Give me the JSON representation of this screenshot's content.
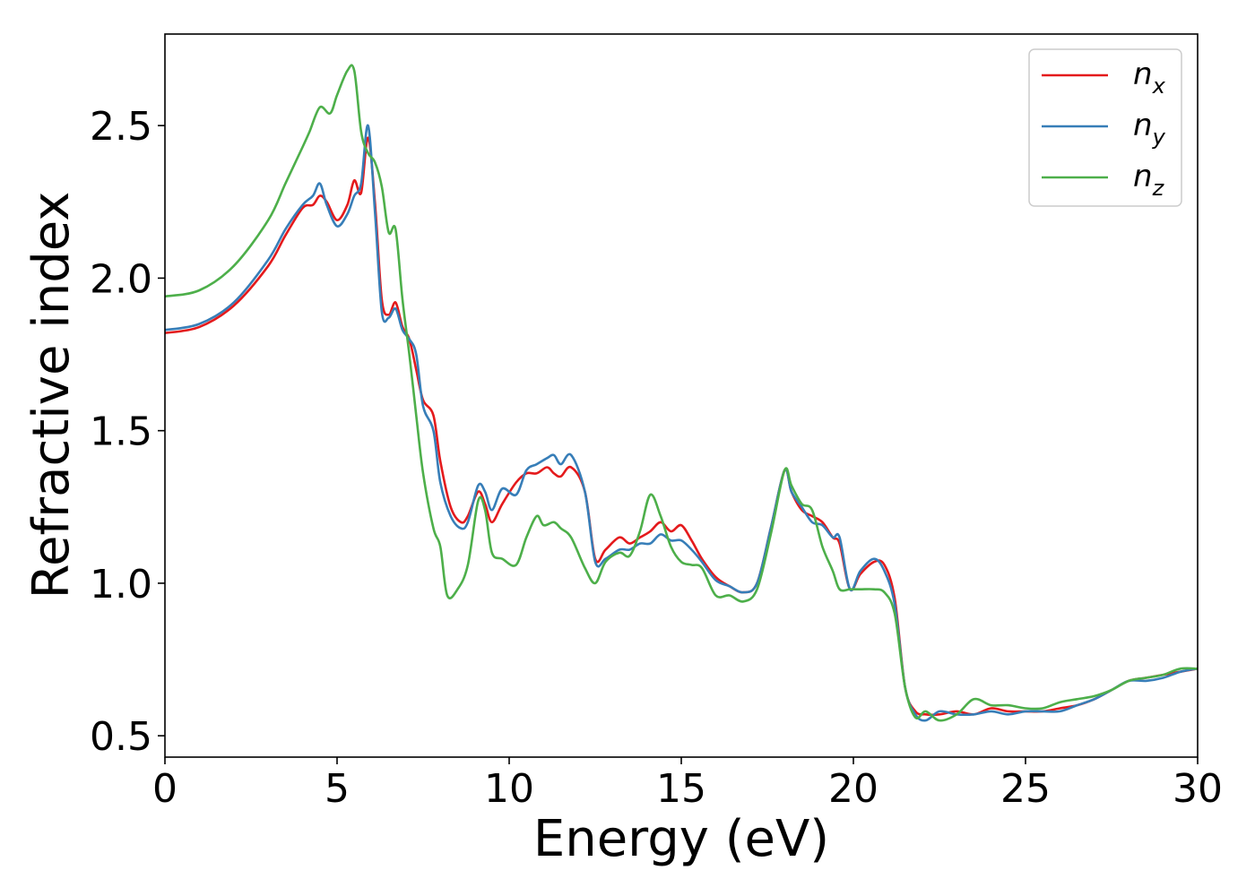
{
  "chart_data": {
    "type": "line",
    "title": "",
    "xlabel": "Energy (eV)",
    "ylabel": "Refractive index",
    "xlim": [
      0,
      30
    ],
    "ylim": [
      0.43,
      2.8
    ],
    "xticks": [
      0,
      5,
      10,
      15,
      20,
      25,
      30
    ],
    "xtick_labels": [
      "0",
      "5",
      "10",
      "15",
      "20",
      "25",
      "30"
    ],
    "yticks": [
      0.5,
      1.0,
      1.5,
      2.0,
      2.5
    ],
    "ytick_labels": [
      "0.5",
      "1.0",
      "1.5",
      "2.0",
      "2.5"
    ],
    "grid": false,
    "legend_position": "top-right",
    "series": [
      {
        "name": "n_x",
        "legend_base": "n",
        "legend_sub": "x",
        "color": "#e41a1c",
        "x": [
          0,
          1,
          2,
          3,
          3.5,
          4,
          4.3,
          4.5,
          4.7,
          5,
          5.3,
          5.5,
          5.7,
          5.9,
          6.1,
          6.3,
          6.5,
          6.7,
          6.9,
          7.1,
          7.3,
          7.5,
          7.8,
          8.0,
          8.3,
          8.6,
          8.8,
          9.1,
          9.3,
          9.5,
          9.8,
          10.2,
          10.5,
          10.8,
          11.1,
          11.3,
          11.5,
          11.8,
          12.2,
          12.5,
          12.8,
          13.2,
          13.5,
          13.8,
          14.1,
          14.4,
          14.7,
          15.0,
          15.3,
          15.6,
          16.0,
          16.4,
          16.8,
          17.2,
          17.6,
          18.0,
          18.2,
          18.5,
          18.8,
          19.1,
          19.4,
          19.6,
          19.9,
          20.2,
          20.6,
          20.9,
          21.2,
          21.5,
          21.8,
          22.1,
          22.5,
          23.0,
          23.5,
          24.0,
          24.5,
          25.0,
          25.5,
          26.0,
          26.5,
          27.0,
          27.5,
          28.0,
          28.5,
          29.0,
          29.5,
          30
        ],
        "y": [
          1.82,
          1.84,
          1.91,
          2.04,
          2.14,
          2.23,
          2.24,
          2.27,
          2.25,
          2.19,
          2.24,
          2.32,
          2.28,
          2.46,
          2.25,
          1.93,
          1.88,
          1.92,
          1.84,
          1.8,
          1.7,
          1.6,
          1.55,
          1.4,
          1.25,
          1.2,
          1.22,
          1.3,
          1.26,
          1.2,
          1.26,
          1.33,
          1.36,
          1.36,
          1.38,
          1.36,
          1.35,
          1.38,
          1.3,
          1.08,
          1.11,
          1.15,
          1.13,
          1.15,
          1.17,
          1.2,
          1.17,
          1.19,
          1.14,
          1.08,
          1.02,
          0.99,
          0.97,
          1.0,
          1.18,
          1.37,
          1.3,
          1.24,
          1.22,
          1.2,
          1.15,
          1.13,
          0.98,
          1.03,
          1.07,
          1.06,
          0.95,
          0.66,
          0.58,
          0.57,
          0.57,
          0.58,
          0.57,
          0.59,
          0.58,
          0.58,
          0.58,
          0.59,
          0.6,
          0.62,
          0.65,
          0.68,
          0.69,
          0.7,
          0.71,
          0.72
        ]
      },
      {
        "name": "n_y",
        "legend_base": "n",
        "legend_sub": "y",
        "color": "#377eb8",
        "x": [
          0,
          1,
          2,
          3,
          3.5,
          4,
          4.3,
          4.5,
          4.7,
          5,
          5.3,
          5.5,
          5.7,
          5.9,
          6.1,
          6.3,
          6.5,
          6.7,
          6.9,
          7.1,
          7.3,
          7.5,
          7.8,
          8.0,
          8.3,
          8.6,
          8.8,
          9.1,
          9.3,
          9.5,
          9.8,
          10.2,
          10.5,
          10.8,
          11.1,
          11.3,
          11.5,
          11.8,
          12.2,
          12.5,
          12.8,
          13.2,
          13.5,
          13.8,
          14.1,
          14.4,
          14.7,
          15.0,
          15.3,
          15.6,
          16.0,
          16.4,
          16.8,
          17.2,
          17.6,
          18.0,
          18.2,
          18.5,
          18.8,
          19.1,
          19.4,
          19.6,
          19.9,
          20.2,
          20.6,
          20.9,
          21.2,
          21.5,
          21.8,
          22.1,
          22.5,
          23.0,
          23.5,
          24.0,
          24.5,
          25.0,
          25.5,
          26.0,
          26.5,
          27.0,
          27.5,
          28.0,
          28.5,
          29.0,
          29.5,
          30
        ],
        "y": [
          1.83,
          1.85,
          1.92,
          2.06,
          2.16,
          2.24,
          2.27,
          2.31,
          2.24,
          2.17,
          2.21,
          2.27,
          2.31,
          2.5,
          2.22,
          1.89,
          1.87,
          1.9,
          1.83,
          1.8,
          1.75,
          1.58,
          1.5,
          1.33,
          1.22,
          1.18,
          1.2,
          1.32,
          1.3,
          1.24,
          1.31,
          1.29,
          1.37,
          1.39,
          1.41,
          1.42,
          1.39,
          1.42,
          1.3,
          1.07,
          1.08,
          1.11,
          1.11,
          1.13,
          1.13,
          1.16,
          1.14,
          1.14,
          1.11,
          1.07,
          1.01,
          0.99,
          0.97,
          1.0,
          1.18,
          1.37,
          1.3,
          1.25,
          1.2,
          1.19,
          1.15,
          1.15,
          0.98,
          1.04,
          1.08,
          1.04,
          0.93,
          0.66,
          0.57,
          0.55,
          0.58,
          0.57,
          0.57,
          0.58,
          0.57,
          0.58,
          0.58,
          0.58,
          0.6,
          0.62,
          0.65,
          0.68,
          0.68,
          0.69,
          0.71,
          0.72
        ]
      },
      {
        "name": "n_z",
        "legend_base": "n",
        "legend_sub": "z",
        "color": "#4daf4a",
        "x": [
          0,
          1,
          2,
          3,
          3.5,
          4,
          4.2,
          4.5,
          4.8,
          5.0,
          5.3,
          5.5,
          5.7,
          5.9,
          6.1,
          6.3,
          6.5,
          6.7,
          6.9,
          7.1,
          7.3,
          7.5,
          7.8,
          8.0,
          8.2,
          8.5,
          8.8,
          9.1,
          9.3,
          9.5,
          9.8,
          10.2,
          10.5,
          10.8,
          11.0,
          11.3,
          11.5,
          11.8,
          12.2,
          12.5,
          12.8,
          13.2,
          13.5,
          13.8,
          14.1,
          14.4,
          14.7,
          15.0,
          15.3,
          15.6,
          16.0,
          16.4,
          16.8,
          17.2,
          17.6,
          18.0,
          18.2,
          18.5,
          18.8,
          19.1,
          19.4,
          19.6,
          19.9,
          20.2,
          20.6,
          20.9,
          21.2,
          21.5,
          21.8,
          22.1,
          22.5,
          23.0,
          23.5,
          24.0,
          24.5,
          25.0,
          25.5,
          26.0,
          26.5,
          27.0,
          27.5,
          28.0,
          28.5,
          29.0,
          29.5,
          30
        ],
        "y": [
          1.94,
          1.96,
          2.04,
          2.19,
          2.31,
          2.43,
          2.48,
          2.56,
          2.54,
          2.6,
          2.68,
          2.68,
          2.48,
          2.41,
          2.38,
          2.3,
          2.15,
          2.16,
          1.93,
          1.75,
          1.55,
          1.36,
          1.18,
          1.12,
          0.96,
          0.98,
          1.06,
          1.27,
          1.24,
          1.1,
          1.08,
          1.06,
          1.15,
          1.22,
          1.19,
          1.2,
          1.18,
          1.15,
          1.05,
          1.0,
          1.07,
          1.1,
          1.09,
          1.17,
          1.29,
          1.22,
          1.12,
          1.07,
          1.06,
          1.05,
          0.96,
          0.96,
          0.94,
          0.98,
          1.16,
          1.37,
          1.32,
          1.26,
          1.24,
          1.12,
          1.04,
          0.98,
          0.98,
          0.98,
          0.98,
          0.97,
          0.9,
          0.66,
          0.56,
          0.58,
          0.55,
          0.57,
          0.62,
          0.6,
          0.6,
          0.59,
          0.59,
          0.61,
          0.62,
          0.63,
          0.65,
          0.68,
          0.69,
          0.7,
          0.72,
          0.72
        ]
      }
    ]
  }
}
